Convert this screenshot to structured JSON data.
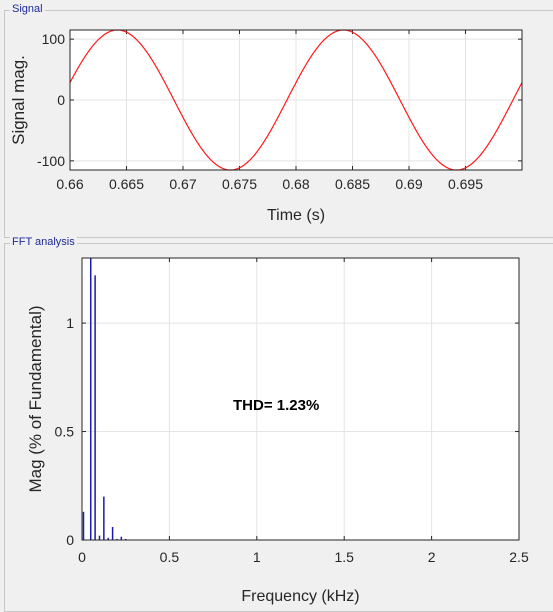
{
  "signal_panel": {
    "title": "Signal"
  },
  "fft_panel": {
    "title": "FFT analysis"
  },
  "thd_label": "THD= 1.23%",
  "colors": {
    "signal": "#ff1a1a",
    "fft": "#1a1ab0",
    "panel_title": "#1d2a99"
  },
  "chart_data": [
    {
      "type": "line",
      "title": "",
      "xlabel": "Time (s)",
      "ylabel": "Signal mag.",
      "xlim": [
        0.66,
        0.7
      ],
      "ylim": [
        -115,
        115
      ],
      "xticks": [
        0.66,
        0.665,
        0.67,
        0.675,
        0.68,
        0.685,
        0.69,
        0.695
      ],
      "xtick_labels": [
        "0.66",
        "0.665",
        "0.67",
        "0.675",
        "0.68",
        "0.685",
        "0.69",
        "0.695"
      ],
      "yticks": [
        -100,
        0,
        100
      ],
      "ytick_labels": [
        "-100",
        "0",
        "100"
      ],
      "grid": true,
      "series": [
        {
          "amplitude": 115,
          "frequency_hz": 50,
          "peak_time_s": 0.6642
        }
      ]
    },
    {
      "type": "bar",
      "title": "",
      "xlabel": "Frequency (kHz)",
      "ylabel": "Mag (% of Fundamental)",
      "xlim": [
        0,
        2.5
      ],
      "ylim": [
        0,
        1.3
      ],
      "xticks": [
        0,
        0.5,
        1,
        1.5,
        2,
        2.5
      ],
      "xtick_labels": [
        "0",
        "0.5",
        "1",
        "1.5",
        "2",
        "2.5"
      ],
      "yticks": [
        0,
        0.5,
        1
      ],
      "ytick_labels": [
        "0",
        "0.5",
        "1"
      ],
      "grid": true,
      "x": [
        0.0,
        0.05,
        0.075,
        0.1,
        0.125,
        0.15,
        0.175,
        0.2,
        0.225,
        0.25
      ],
      "values": [
        0.13,
        1.3,
        1.22,
        0.02,
        0.2,
        0.01,
        0.06,
        0.005,
        0.015,
        0.005
      ]
    }
  ]
}
